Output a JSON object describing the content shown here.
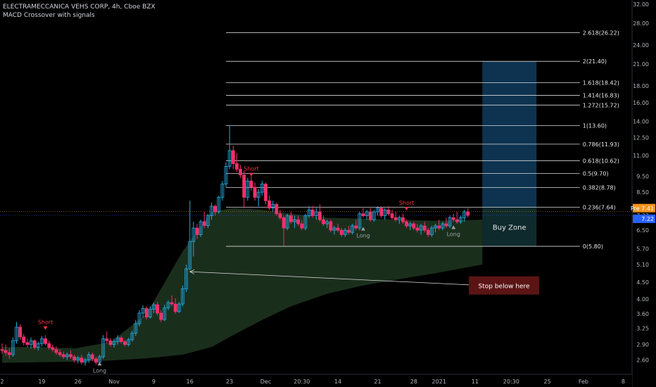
{
  "header": {
    "symbol": "ELECTRAMECCANICA VEHS CORP, 4h, Cboe BZX",
    "indicator": "MACD Crossover with signals"
  },
  "colors": {
    "background": "#000000",
    "up": "#26a9e0",
    "down": "#f0306b",
    "fib_line": "#d9d9d9",
    "cloud": "#1a2e1c",
    "target_box": "#0d3350",
    "zone_box": "#0f2a2c",
    "stop_box": "#5a1414",
    "axis_text": "#b2b5be",
    "price_orange": "#f7931a",
    "price_blue": "#2962ff"
  },
  "chart_data": {
    "type": "candlestick",
    "y_scale": "log",
    "ylim": [
      2.35,
      33.0
    ],
    "xlim": [
      0,
      166
    ],
    "x_ticks": [
      {
        "label": "2",
        "x": 0
      },
      {
        "label": "19",
        "x": 11
      },
      {
        "label": "26",
        "x": 21
      },
      {
        "label": "Nov",
        "x": 31
      },
      {
        "label": "9",
        "x": 42
      },
      {
        "label": "16",
        "x": 52
      },
      {
        "label": "23",
        "x": 63
      },
      {
        "label": "Dec",
        "x": 73
      },
      {
        "label": "20:30",
        "x": 83
      },
      {
        "label": "14",
        "x": 93
      },
      {
        "label": "21",
        "x": 104
      },
      {
        "label": "28",
        "x": 114
      },
      {
        "label": "2021",
        "x": 121
      },
      {
        "label": "11",
        "x": 131
      },
      {
        "label": "20:30",
        "x": 141
      },
      {
        "label": "25",
        "x": 151
      },
      {
        "label": "Feb",
        "x": 161
      },
      {
        "label": "8",
        "x": 172
      }
    ],
    "y_ticks": [
      "2.60",
      "2.90",
      "3.25",
      "3.60",
      "4.00",
      "4.50",
      "5.10",
      "5.70",
      "6.50",
      "7.22",
      "8.50",
      "9.50",
      "11.00",
      "12.50",
      "14.00",
      "16.00",
      "18.00",
      "21.00",
      "24.00",
      "28.00",
      "32.00"
    ],
    "fib_start_x": 62,
    "fib_end_x": 160,
    "fib_levels": [
      {
        "label": "2.618(26.22)",
        "value": 26.22
      },
      {
        "label": "2(21.40)",
        "value": 21.4
      },
      {
        "label": "1.618(18.42)",
        "value": 18.42
      },
      {
        "label": "1.414(16.83)",
        "value": 16.83
      },
      {
        "label": "1.272(15.72)",
        "value": 15.72
      },
      {
        "label": "1(13.60)",
        "value": 13.6
      },
      {
        "label": "0.786(11.93)",
        "value": 11.93
      },
      {
        "label": "0.618(10.62)",
        "value": 10.62
      },
      {
        "label": "0.5(9.70)",
        "value": 9.7
      },
      {
        "label": "0.382(8.78)",
        "value": 8.78
      },
      {
        "label": "0.236(7.64)",
        "value": 7.64
      },
      {
        "label": "0(5.80)",
        "value": 5.8
      }
    ],
    "target_box": {
      "x0": 133,
      "x1": 148,
      "y0": 7.64,
      "y1": 21.4
    },
    "buy_zone": {
      "x0": 133,
      "x1": 148,
      "y0": 5.8,
      "y1": 7.64,
      "label": "Buy Zone"
    },
    "stop_label": {
      "text": "Stop below here",
      "x": 139,
      "y": 4.4
    },
    "stop_arrow": {
      "from_x": 133,
      "from_y": 4.4,
      "to_x": 52,
      "to_y": 4.85
    },
    "signals": [
      {
        "label": "Short",
        "x": 12,
        "y": 3.25,
        "dir": "down"
      },
      {
        "label": "Long",
        "x": 27,
        "y": 2.54,
        "dir": "up"
      },
      {
        "label": "Short",
        "x": 69,
        "y": 9.6,
        "dir": "down"
      },
      {
        "label": "Long",
        "x": 100,
        "y": 6.58,
        "dir": "up"
      },
      {
        "label": "Short",
        "x": 112,
        "y": 7.55,
        "dir": "down"
      },
      {
        "label": "Long",
        "x": 125,
        "y": 6.65,
        "dir": "up"
      }
    ],
    "price_tags": [
      {
        "label": "Pre 7.41",
        "value": 7.41,
        "color": "orange"
      },
      {
        "label": "7.22",
        "value": 7.22,
        "color": "blue"
      }
    ],
    "cloud": [
      {
        "x": 0,
        "top": 2.85,
        "bottom": 2.55
      },
      {
        "x": 10,
        "top": 2.85,
        "bottom": 2.56
      },
      {
        "x": 20,
        "top": 2.82,
        "bottom": 2.57
      },
      {
        "x": 30,
        "top": 2.95,
        "bottom": 2.59
      },
      {
        "x": 40,
        "top": 3.6,
        "bottom": 2.63
      },
      {
        "x": 50,
        "top": 5.6,
        "bottom": 2.7
      },
      {
        "x": 58,
        "top": 7.4,
        "bottom": 2.85
      },
      {
        "x": 64,
        "top": 7.6,
        "bottom": 3.1
      },
      {
        "x": 72,
        "top": 7.5,
        "bottom": 3.45
      },
      {
        "x": 80,
        "top": 7.3,
        "bottom": 3.8
      },
      {
        "x": 90,
        "top": 7.1,
        "bottom": 4.15
      },
      {
        "x": 100,
        "top": 7.05,
        "bottom": 4.4
      },
      {
        "x": 110,
        "top": 7.0,
        "bottom": 4.6
      },
      {
        "x": 120,
        "top": 6.95,
        "bottom": 4.8
      },
      {
        "x": 133,
        "top": 7.0,
        "bottom": 5.1
      }
    ],
    "candles": [
      [
        2.8,
        2.92,
        2.72,
        2.78
      ],
      [
        2.78,
        2.9,
        2.68,
        2.74
      ],
      [
        2.74,
        2.82,
        2.62,
        2.7
      ],
      [
        2.7,
        3.05,
        2.66,
        2.98
      ],
      [
        2.98,
        3.4,
        2.92,
        3.28
      ],
      [
        3.28,
        3.35,
        3.0,
        3.06
      ],
      [
        3.06,
        3.12,
        2.88,
        2.94
      ],
      [
        2.94,
        3.02,
        2.84,
        2.9
      ],
      [
        2.9,
        3.05,
        2.82,
        2.98
      ],
      [
        2.98,
        3.0,
        2.8,
        2.84
      ],
      [
        2.84,
        2.96,
        2.78,
        2.92
      ],
      [
        2.92,
        3.08,
        2.86,
        3.02
      ],
      [
        3.02,
        3.1,
        2.88,
        2.92
      ],
      [
        2.92,
        2.98,
        2.8,
        2.84
      ],
      [
        2.84,
        2.9,
        2.76,
        2.8
      ],
      [
        2.8,
        2.86,
        2.7,
        2.74
      ],
      [
        2.74,
        2.8,
        2.66,
        2.7
      ],
      [
        2.7,
        2.76,
        2.62,
        2.66
      ],
      [
        2.66,
        2.74,
        2.6,
        2.7
      ],
      [
        2.7,
        2.78,
        2.62,
        2.66
      ],
      [
        2.66,
        2.7,
        2.56,
        2.6
      ],
      [
        2.6,
        2.68,
        2.54,
        2.64
      ],
      [
        2.64,
        2.7,
        2.52,
        2.56
      ],
      [
        2.56,
        2.64,
        2.5,
        2.6
      ],
      [
        2.6,
        2.75,
        2.55,
        2.7
      ],
      [
        2.7,
        2.74,
        2.58,
        2.62
      ],
      [
        2.62,
        2.66,
        2.52,
        2.56
      ],
      [
        2.56,
        2.7,
        2.54,
        2.66
      ],
      [
        2.66,
        3.1,
        2.62,
        3.02
      ],
      [
        3.02,
        3.18,
        2.92,
        2.98
      ],
      [
        2.98,
        3.04,
        2.86,
        2.9
      ],
      [
        2.9,
        3.02,
        2.84,
        2.96
      ],
      [
        2.96,
        3.1,
        2.9,
        3.04
      ],
      [
        3.04,
        3.08,
        2.92,
        2.96
      ],
      [
        2.96,
        3.0,
        2.86,
        2.9
      ],
      [
        2.9,
        3.04,
        2.86,
        3.0
      ],
      [
        3.0,
        3.2,
        2.96,
        3.14
      ],
      [
        3.14,
        3.45,
        3.08,
        3.36
      ],
      [
        3.36,
        3.7,
        3.3,
        3.62
      ],
      [
        3.62,
        3.82,
        3.5,
        3.74
      ],
      [
        3.74,
        3.8,
        3.46,
        3.52
      ],
      [
        3.52,
        3.8,
        3.48,
        3.72
      ],
      [
        3.72,
        3.9,
        3.62,
        3.84
      ],
      [
        3.84,
        3.92,
        3.56,
        3.62
      ],
      [
        3.62,
        3.7,
        3.4,
        3.46
      ],
      [
        3.46,
        3.84,
        3.42,
        3.76
      ],
      [
        3.76,
        3.96,
        3.7,
        3.9
      ],
      [
        3.9,
        4.1,
        3.8,
        3.86
      ],
      [
        3.86,
        4.02,
        3.6,
        3.66
      ],
      [
        3.66,
        3.92,
        3.62,
        3.86
      ],
      [
        3.86,
        4.4,
        3.8,
        4.3
      ],
      [
        4.3,
        5.1,
        4.2,
        4.95
      ],
      [
        4.95,
        8.0,
        4.9,
        6.0
      ],
      [
        6.0,
        6.9,
        5.4,
        6.6
      ],
      [
        6.6,
        6.8,
        6.1,
        6.3
      ],
      [
        6.3,
        7.0,
        6.2,
        6.9
      ],
      [
        6.9,
        7.4,
        6.6,
        6.72
      ],
      [
        6.72,
        7.3,
        6.6,
        7.2
      ],
      [
        7.2,
        7.9,
        7.0,
        7.7
      ],
      [
        7.7,
        7.8,
        7.2,
        7.4
      ],
      [
        7.4,
        8.3,
        7.3,
        8.2
      ],
      [
        8.2,
        9.2,
        8.0,
        9.0
      ],
      [
        9.0,
        10.5,
        8.8,
        10.2
      ],
      [
        10.2,
        13.6,
        10.0,
        11.4
      ],
      [
        11.4,
        11.8,
        10.0,
        10.4
      ],
      [
        10.4,
        11.2,
        9.8,
        10.0
      ],
      [
        10.0,
        10.3,
        9.4,
        9.6
      ],
      [
        9.6,
        9.9,
        7.6,
        8.2
      ],
      [
        8.2,
        9.4,
        8.0,
        9.2
      ],
      [
        9.2,
        9.7,
        8.6,
        8.8
      ],
      [
        8.8,
        9.1,
        8.0,
        8.2
      ],
      [
        8.2,
        8.7,
        7.7,
        8.5
      ],
      [
        8.5,
        9.2,
        8.3,
        9.0
      ],
      [
        9.0,
        9.1,
        7.8,
        8.0
      ],
      [
        8.0,
        8.3,
        7.5,
        7.6
      ],
      [
        7.6,
        8.0,
        7.4,
        7.8
      ],
      [
        7.8,
        7.9,
        7.2,
        7.3
      ],
      [
        7.3,
        7.5,
        7.0,
        7.1
      ],
      [
        7.1,
        7.2,
        5.8,
        6.6
      ],
      [
        6.6,
        7.3,
        6.5,
        7.2
      ],
      [
        7.2,
        7.4,
        6.8,
        6.9
      ],
      [
        6.9,
        7.2,
        6.6,
        7.0
      ],
      [
        7.0,
        7.2,
        6.7,
        6.8
      ],
      [
        6.8,
        7.0,
        6.5,
        6.6
      ],
      [
        6.6,
        7.3,
        6.5,
        7.2
      ],
      [
        7.2,
        7.7,
        7.1,
        7.5
      ],
      [
        7.5,
        7.7,
        7.1,
        7.2
      ],
      [
        7.2,
        7.6,
        7.0,
        7.4
      ],
      [
        7.4,
        7.8,
        6.9,
        7.0
      ],
      [
        7.0,
        7.2,
        6.7,
        6.8
      ],
      [
        6.8,
        7.0,
        6.6,
        6.9
      ],
      [
        6.9,
        7.0,
        6.4,
        6.5
      ],
      [
        6.5,
        6.7,
        6.3,
        6.6
      ],
      [
        6.6,
        6.8,
        6.4,
        6.5
      ],
      [
        6.5,
        6.6,
        6.2,
        6.3
      ],
      [
        6.3,
        6.6,
        6.2,
        6.5
      ],
      [
        6.5,
        6.7,
        6.3,
        6.4
      ],
      [
        6.4,
        6.8,
        6.3,
        6.7
      ],
      [
        6.7,
        7.0,
        6.5,
        6.6
      ],
      [
        6.6,
        7.4,
        6.5,
        7.3
      ],
      [
        7.3,
        7.6,
        7.1,
        7.2
      ],
      [
        7.2,
        7.5,
        7.0,
        7.4
      ],
      [
        7.4,
        7.6,
        6.9,
        7.0
      ],
      [
        7.0,
        7.5,
        6.9,
        7.4
      ],
      [
        7.4,
        7.7,
        7.2,
        7.6
      ],
      [
        7.6,
        7.7,
        7.1,
        7.2
      ],
      [
        7.2,
        7.6,
        7.0,
        7.5
      ],
      [
        7.5,
        7.7,
        7.2,
        7.3
      ],
      [
        7.3,
        7.5,
        7.0,
        7.1
      ],
      [
        7.1,
        7.4,
        6.9,
        7.0
      ],
      [
        7.0,
        7.2,
        6.8,
        7.1
      ],
      [
        7.1,
        7.3,
        6.8,
        6.9
      ],
      [
        6.9,
        7.0,
        6.6,
        6.7
      ],
      [
        6.7,
        6.9,
        6.5,
        6.8
      ],
      [
        6.8,
        6.9,
        6.5,
        6.6
      ],
      [
        6.6,
        6.8,
        6.4,
        6.5
      ],
      [
        6.5,
        6.8,
        6.3,
        6.7
      ],
      [
        6.7,
        6.9,
        6.4,
        6.5
      ],
      [
        6.5,
        6.6,
        6.2,
        6.3
      ],
      [
        6.3,
        6.7,
        6.2,
        6.6
      ],
      [
        6.6,
        6.8,
        6.4,
        6.7
      ],
      [
        6.7,
        7.0,
        6.5,
        6.6
      ],
      [
        6.6,
        6.9,
        6.5,
        6.8
      ],
      [
        6.8,
        7.1,
        6.6,
        6.7
      ],
      [
        6.7,
        7.2,
        6.6,
        7.1
      ],
      [
        7.1,
        7.3,
        6.9,
        7.0
      ],
      [
        7.0,
        7.4,
        6.8,
        6.9
      ],
      [
        6.9,
        7.2,
        6.8,
        7.1
      ],
      [
        7.1,
        7.5,
        6.9,
        7.4
      ],
      [
        7.4,
        7.6,
        7.1,
        7.22
      ]
    ]
  }
}
